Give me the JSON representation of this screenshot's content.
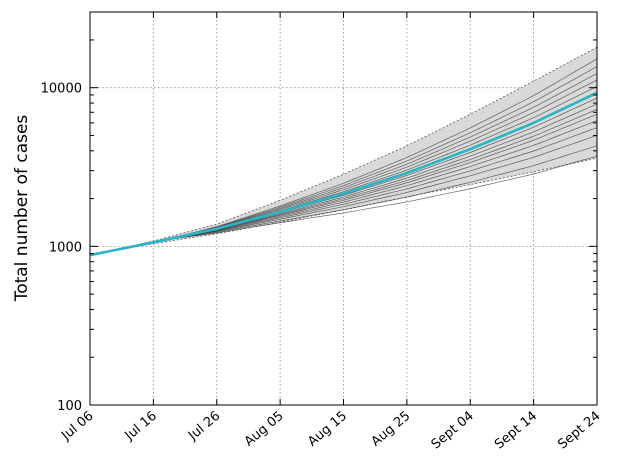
{
  "chart_data": {
    "type": "line",
    "title": "",
    "xlabel": "",
    "ylabel": "Total number of cases",
    "yscale": "log",
    "xlim": [
      "2014-07-06",
      "2014-09-24"
    ],
    "ylim": [
      100,
      30000
    ],
    "x_ticks": [
      "Jul 06",
      "Jul 16",
      "Jul 26",
      "Aug 05",
      "Aug 15",
      "Aug 25",
      "Sept 04",
      "Sept 14",
      "Sept 24"
    ],
    "x_tick_dates": [
      "2014-07-06",
      "2014-07-16",
      "2014-07-26",
      "2014-08-05",
      "2014-08-15",
      "2014-08-25",
      "2014-09-04",
      "2014-09-14",
      "2014-09-24"
    ],
    "y_ticks": [
      100,
      1000,
      10000
    ],
    "y_tick_labels": [
      "100",
      "1000",
      "10000"
    ],
    "grid": true,
    "colors": {
      "main": "#29b5c6",
      "ensemble": "#333333",
      "band": "#d9d9d9"
    },
    "series": [
      {
        "role": "fit",
        "points": [
          {
            "x": "2014-07-06",
            "y": 880
          },
          {
            "x": "2014-07-16",
            "y": 1060
          },
          {
            "x": "2014-07-26",
            "y": 1290
          },
          {
            "x": "2014-08-05",
            "y": 1650
          },
          {
            "x": "2014-08-15",
            "y": 2150
          },
          {
            "x": "2014-08-25",
            "y": 2900
          },
          {
            "x": "2014-09-04",
            "y": 4100
          },
          {
            "x": "2014-09-14",
            "y": 6000
          },
          {
            "x": "2014-09-24",
            "y": 9300
          }
        ]
      }
    ],
    "ensemble_endpoints": [
      3700,
      4300,
      5000,
      5600,
      6200,
      6800,
      7300,
      7900,
      8600,
      9300,
      10200,
      11200,
      12300,
      13600,
      15200
    ],
    "band": {
      "lower": [
        {
          "x": "2014-07-06",
          "y": 880
        },
        {
          "x": "2014-07-16",
          "y": 1040
        },
        {
          "x": "2014-07-26",
          "y": 1200
        },
        {
          "x": "2014-08-05",
          "y": 1420
        },
        {
          "x": "2014-08-15",
          "y": 1700
        },
        {
          "x": "2014-08-25",
          "y": 2050
        },
        {
          "x": "2014-09-04",
          "y": 2450
        },
        {
          "x": "2014-09-14",
          "y": 2950
        },
        {
          "x": "2014-09-24",
          "y": 3600
        }
      ],
      "upper": [
        {
          "x": "2014-07-06",
          "y": 880
        },
        {
          "x": "2014-07-16",
          "y": 1080
        },
        {
          "x": "2014-07-26",
          "y": 1380
        },
        {
          "x": "2014-08-05",
          "y": 1950
        },
        {
          "x": "2014-08-15",
          "y": 2850
        },
        {
          "x": "2014-08-25",
          "y": 4300
        },
        {
          "x": "2014-09-04",
          "y": 6800
        },
        {
          "x": "2014-09-14",
          "y": 11000
        },
        {
          "x": "2014-09-24",
          "y": 18000
        }
      ]
    }
  }
}
